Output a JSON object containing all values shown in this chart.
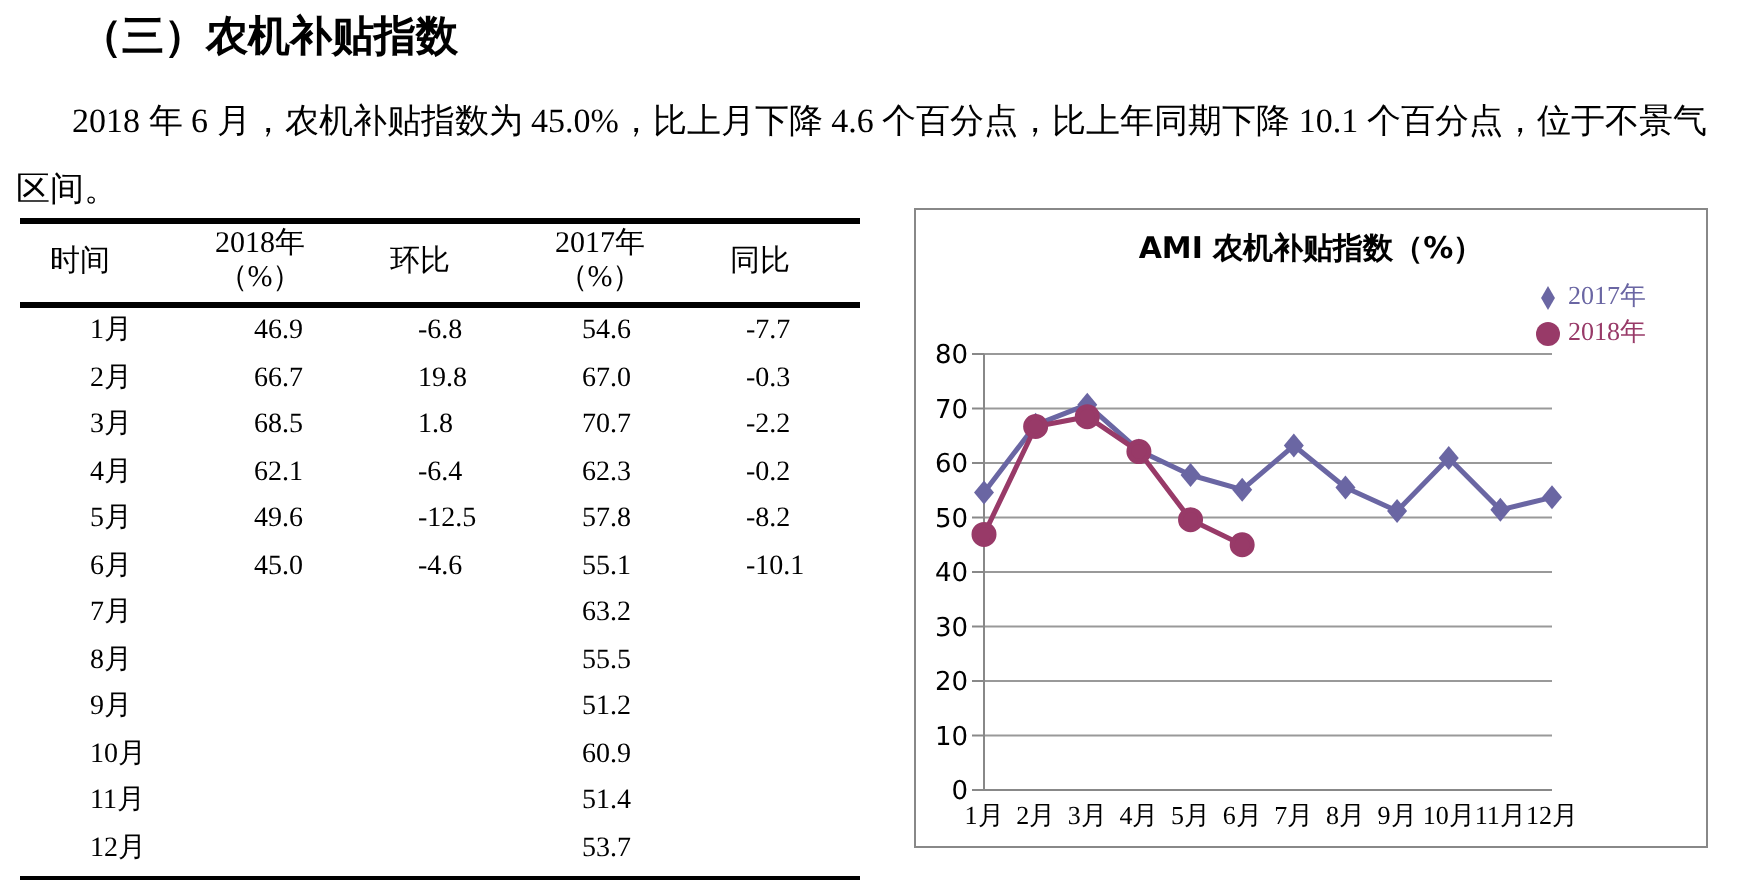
{
  "chart_data": [
    {
      "type": "other",
      "title": "（三）农机补贴指数",
      "subtitle": "2018 年 6 月，农机补贴指数为 45.0%，比上月下降 4.6 个百分点，比上年同期下降 10.1 个百分点，位于不景气区间。",
      "categories": [
        "时间",
        "2018年（%）",
        "环比",
        "2017年（%）",
        "同比"
      ],
      "y_categories": [
        "1月",
        "2月",
        "3月",
        "4月",
        "5月",
        "6月",
        "7月",
        "8月",
        "9月",
        "10月",
        "11月",
        "12月"
      ],
      "cell_labels": [
        [
          "46.9",
          "-6.8",
          "54.6",
          "-7.7"
        ],
        [
          "66.7",
          "19.8",
          "67.0",
          "-0.3"
        ],
        [
          "68.5",
          "1.8",
          "70.7",
          "-2.2"
        ],
        [
          "62.1",
          "-6.4",
          "62.3",
          "-0.2"
        ],
        [
          "49.6",
          "-12.5",
          "57.8",
          "-8.2"
        ],
        [
          "45.0",
          "-4.6",
          "55.1",
          "-10.1"
        ],
        [
          null,
          null,
          "63.2",
          null
        ],
        [
          null,
          null,
          "55.5",
          null
        ],
        [
          null,
          null,
          "51.2",
          null
        ],
        [
          null,
          null,
          "60.9",
          null
        ],
        [
          null,
          null,
          "51.4",
          null
        ],
        [
          null,
          null,
          "53.7",
          null
        ]
      ]
    },
    {
      "type": "line",
      "title": "AMI 农机补贴指数（%）",
      "categories": [
        "1月",
        "2月",
        "3月",
        "4月",
        "5月",
        "6月",
        "7月",
        "8月",
        "9月",
        "10月",
        "11月",
        "12月"
      ],
      "series": [
        {
          "name": "2017年",
          "color": "#6a66a3",
          "marker": "diamond",
          "values": [
            54.6,
            67.0,
            70.7,
            62.3,
            57.8,
            55.1,
            63.2,
            55.5,
            51.2,
            60.9,
            51.4,
            53.7
          ]
        },
        {
          "name": "2018年",
          "color": "#983a68",
          "marker": "circle",
          "values": [
            46.9,
            66.7,
            68.5,
            62.1,
            49.6,
            45.0,
            null,
            null,
            null,
            null,
            null,
            null
          ]
        }
      ],
      "ylim": [
        0,
        80
      ],
      "yticks": [
        0,
        10,
        20,
        30,
        40,
        50,
        60,
        70,
        80
      ],
      "grid": "y",
      "legend": "top right"
    }
  ]
}
